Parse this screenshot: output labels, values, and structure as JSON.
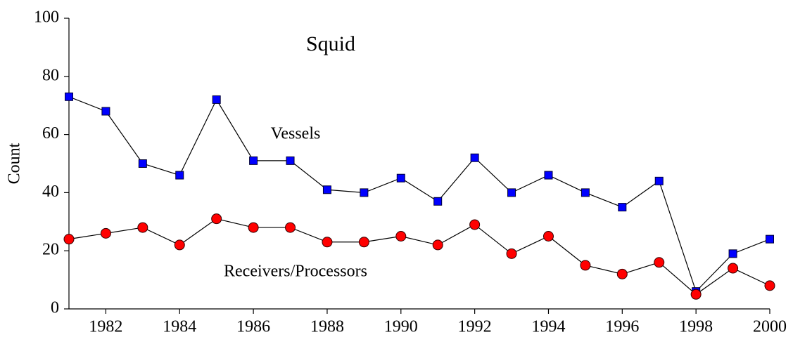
{
  "chart_data": {
    "type": "line",
    "title": "Squid",
    "y_label": "Count",
    "x": [
      1981,
      1982,
      1983,
      1984,
      1985,
      1986,
      1987,
      1988,
      1989,
      1990,
      1991,
      1992,
      1993,
      1994,
      1995,
      1996,
      1997,
      1998,
      1999,
      2000
    ],
    "series": [
      {
        "name": "Vessels",
        "color": "#0000ff",
        "marker": "square",
        "values": [
          73,
          68,
          50,
          46,
          72,
          51,
          51,
          41,
          40,
          45,
          37,
          52,
          40,
          46,
          40,
          35,
          44,
          6,
          19,
          24
        ]
      },
      {
        "name": "Receivers/Processors",
        "color": "#ff0000",
        "marker": "circle",
        "values": [
          24,
          26,
          28,
          22,
          31,
          28,
          28,
          23,
          23,
          25,
          22,
          29,
          19,
          25,
          15,
          12,
          16,
          5,
          14,
          8
        ]
      }
    ],
    "xlim": [
      1981,
      2000
    ],
    "xticks": [
      1982,
      1984,
      1986,
      1988,
      1990,
      1992,
      1994,
      1996,
      1998,
      2000
    ],
    "ylim": [
      0,
      100
    ],
    "yticks": [
      0,
      20,
      40,
      60,
      80,
      100
    ]
  }
}
